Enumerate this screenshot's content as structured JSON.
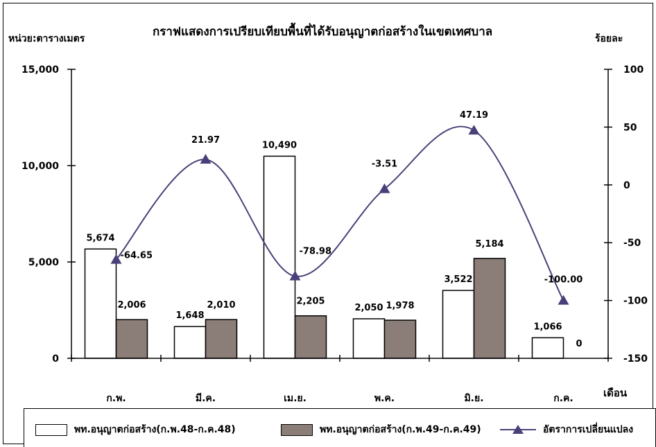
{
  "chart_data": {
    "type": "bar",
    "title": "กราฟแสดงการเปรียบเทียบพื้นที่ได้รับอนุญาตก่อสร้างในเขตเทศบาล",
    "ylabel": "หน่วย:ตารางเมตร",
    "y2label": "ร้อยละ",
    "xlabel": "เดือน",
    "categories": [
      "ก.พ.",
      "มี.ค.",
      "เม.ย.",
      "พ.ค.",
      "มิ.ย.",
      "ก.ค."
    ],
    "ylim": [
      0,
      15000
    ],
    "y_ticks": [
      "0",
      "5,000",
      "10,000",
      "15,000"
    ],
    "y2lim": [
      -150,
      100
    ],
    "y2_ticks": [
      "-150",
      "-100",
      "-50",
      "0",
      "50",
      "100"
    ],
    "series": [
      {
        "name": "พท.อนุญาตก่อสร้าง(ก.พ.48-ก.ค.48)",
        "kind": "bar",
        "color": "#ffffff",
        "values": [
          5674,
          1648,
          10490,
          2050,
          3522,
          1066
        ],
        "labels": [
          "5,674",
          "1,648",
          "10,490",
          "2,050",
          "3,522",
          "1,066"
        ]
      },
      {
        "name": "พท.อนุญาตก่อสร้าง(ก.พ.49-ก.ค.49)",
        "kind": "bar",
        "color": "#8b7d78",
        "values": [
          2006,
          2010,
          2205,
          1978,
          5184,
          0
        ],
        "labels": [
          "2,006",
          "2,010",
          "2,205",
          "1,978",
          "5,184",
          "0"
        ]
      },
      {
        "name": "อัตราการเปลี่ยนแปลง",
        "kind": "line",
        "axis": "right",
        "color": "#4a3f78",
        "marker": "triangle",
        "values": [
          -64.65,
          21.97,
          -78.98,
          -3.51,
          47.19,
          -100.0
        ],
        "labels": [
          "-64.65",
          "21.97",
          "-78.98",
          "-3.51",
          "47.19",
          "-100.00"
        ]
      }
    ],
    "legend": "bottom"
  }
}
